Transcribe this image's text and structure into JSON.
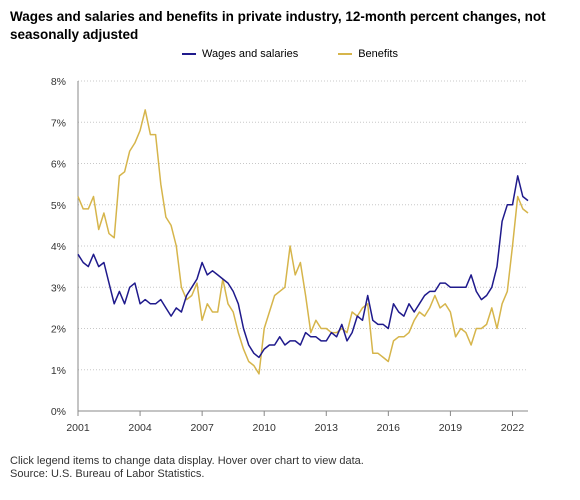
{
  "title": "Wages and salaries and benefits in private industry, 12-month percent changes, not seasonally adjusted",
  "colors": {
    "wages": "#1f1a8c",
    "benefits": "#d6b54b",
    "grid": "#c8c8c8",
    "axis": "#888888"
  },
  "footer": {
    "line1": "Click legend items to change data display. Hover over chart to view data.",
    "line2": "Source: U.S. Bureau of Labor Statistics."
  },
  "chart_data": {
    "type": "line",
    "title": "Wages and salaries and benefits in private industry, 12-month percent changes, not seasonally adjusted",
    "xlabel": "",
    "ylabel": "",
    "ylim": [
      0,
      8
    ],
    "y_ticks": [
      "0%",
      "1%",
      "2%",
      "3%",
      "4%",
      "5%",
      "6%",
      "7%",
      "8%"
    ],
    "x_range": [
      2001.0,
      2022.75
    ],
    "x_ticks": [
      "2001",
      "2004",
      "2007",
      "2010",
      "2013",
      "2016",
      "2019",
      "2022"
    ],
    "grid": "horizontal",
    "legend": "top-center",
    "series": [
      {
        "name": "Wages and salaries",
        "color": "#1f1a8c",
        "x": [
          2001.0,
          2001.25,
          2001.5,
          2001.75,
          2002.0,
          2002.25,
          2002.5,
          2002.75,
          2003.0,
          2003.25,
          2003.5,
          2003.75,
          2004.0,
          2004.25,
          2004.5,
          2004.75,
          2005.0,
          2005.25,
          2005.5,
          2005.75,
          2006.0,
          2006.25,
          2006.5,
          2006.75,
          2007.0,
          2007.25,
          2007.5,
          2007.75,
          2008.0,
          2008.25,
          2008.5,
          2008.75,
          2009.0,
          2009.25,
          2009.5,
          2009.75,
          2010.0,
          2010.25,
          2010.5,
          2010.75,
          2011.0,
          2011.25,
          2011.5,
          2011.75,
          2012.0,
          2012.25,
          2012.5,
          2012.75,
          2013.0,
          2013.25,
          2013.5,
          2013.75,
          2014.0,
          2014.25,
          2014.5,
          2014.75,
          2015.0,
          2015.25,
          2015.5,
          2015.75,
          2016.0,
          2016.25,
          2016.5,
          2016.75,
          2017.0,
          2017.25,
          2017.5,
          2017.75,
          2018.0,
          2018.25,
          2018.5,
          2018.75,
          2019.0,
          2019.25,
          2019.5,
          2019.75,
          2020.0,
          2020.25,
          2020.5,
          2020.75,
          2021.0,
          2021.25,
          2021.5,
          2021.75,
          2022.0,
          2022.25,
          2022.5,
          2022.75
        ],
        "y": [
          3.8,
          3.6,
          3.5,
          3.8,
          3.5,
          3.6,
          3.1,
          2.6,
          2.9,
          2.6,
          3.0,
          3.1,
          2.6,
          2.7,
          2.6,
          2.6,
          2.7,
          2.5,
          2.3,
          2.5,
          2.4,
          2.8,
          3.0,
          3.2,
          3.6,
          3.3,
          3.4,
          3.3,
          3.2,
          3.1,
          2.9,
          2.6,
          2.0,
          1.6,
          1.4,
          1.3,
          1.5,
          1.6,
          1.6,
          1.8,
          1.6,
          1.7,
          1.7,
          1.6,
          1.9,
          1.8,
          1.8,
          1.7,
          1.7,
          1.9,
          1.8,
          2.1,
          1.7,
          1.9,
          2.3,
          2.2,
          2.8,
          2.2,
          2.1,
          2.1,
          2.0,
          2.6,
          2.4,
          2.3,
          2.6,
          2.4,
          2.6,
          2.8,
          2.9,
          2.9,
          3.1,
          3.1,
          3.0,
          3.0,
          3.0,
          3.0,
          3.3,
          2.9,
          2.7,
          2.8,
          3.0,
          3.5,
          4.6,
          5.0,
          5.0,
          5.7,
          5.2,
          5.1
        ]
      },
      {
        "name": "Benefits",
        "color": "#d6b54b",
        "x": [
          2001.0,
          2001.25,
          2001.5,
          2001.75,
          2002.0,
          2002.25,
          2002.5,
          2002.75,
          2003.0,
          2003.25,
          2003.5,
          2003.75,
          2004.0,
          2004.25,
          2004.5,
          2004.75,
          2005.0,
          2005.25,
          2005.5,
          2005.75,
          2006.0,
          2006.25,
          2006.5,
          2006.75,
          2007.0,
          2007.25,
          2007.5,
          2007.75,
          2008.0,
          2008.25,
          2008.5,
          2008.75,
          2009.0,
          2009.25,
          2009.5,
          2009.75,
          2010.0,
          2010.25,
          2010.5,
          2010.75,
          2011.0,
          2011.25,
          2011.5,
          2011.75,
          2012.0,
          2012.25,
          2012.5,
          2012.75,
          2013.0,
          2013.25,
          2013.5,
          2013.75,
          2014.0,
          2014.25,
          2014.5,
          2014.75,
          2015.0,
          2015.25,
          2015.5,
          2015.75,
          2016.0,
          2016.25,
          2016.5,
          2016.75,
          2017.0,
          2017.25,
          2017.5,
          2017.75,
          2018.0,
          2018.25,
          2018.5,
          2018.75,
          2019.0,
          2019.25,
          2019.5,
          2019.75,
          2020.0,
          2020.25,
          2020.5,
          2020.75,
          2021.0,
          2021.25,
          2021.5,
          2021.75,
          2022.0,
          2022.25,
          2022.5,
          2022.75
        ],
        "y": [
          5.2,
          4.9,
          4.9,
          5.2,
          4.4,
          4.8,
          4.3,
          4.2,
          5.7,
          5.8,
          6.3,
          6.5,
          6.8,
          7.3,
          6.7,
          6.7,
          5.5,
          4.7,
          4.5,
          4.0,
          3.0,
          2.7,
          2.8,
          3.1,
          2.2,
          2.6,
          2.4,
          2.4,
          3.2,
          2.6,
          2.4,
          1.9,
          1.5,
          1.2,
          1.1,
          0.9,
          2.0,
          2.4,
          2.8,
          2.9,
          3.0,
          4.0,
          3.3,
          3.6,
          2.8,
          1.9,
          2.2,
          2.0,
          2.0,
          1.9,
          1.9,
          2.0,
          1.9,
          2.4,
          2.3,
          2.5,
          2.6,
          1.4,
          1.4,
          1.3,
          1.2,
          1.7,
          1.8,
          1.8,
          1.9,
          2.2,
          2.4,
          2.3,
          2.5,
          2.8,
          2.5,
          2.6,
          2.4,
          1.8,
          2.0,
          1.9,
          1.6,
          2.0,
          2.0,
          2.1,
          2.5,
          2.0,
          2.6,
          2.9,
          4.0,
          5.2,
          4.9,
          4.8
        ]
      }
    ]
  }
}
